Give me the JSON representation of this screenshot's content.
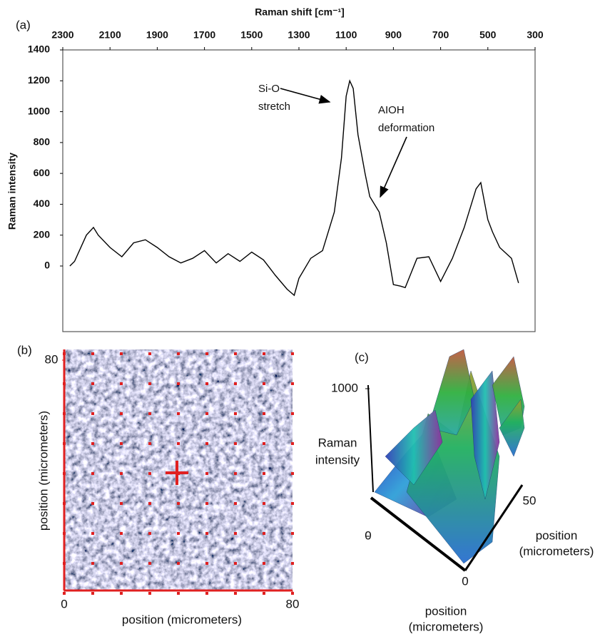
{
  "chart_data": [
    {
      "type": "line",
      "panel": "(a)",
      "title": "Raman shift [cm⁻¹]",
      "ylabel": "Raman intensity",
      "xlim": [
        2300,
        300
      ],
      "xticks": [
        2300,
        2100,
        1900,
        1700,
        1500,
        1300,
        1100,
        900,
        700,
        500,
        300
      ],
      "ylim": [
        -425,
        1400
      ],
      "yticks": [
        0,
        200,
        400,
        600,
        800,
        1000,
        1200,
        1400
      ],
      "color": "#000000",
      "x": [
        2270,
        2250,
        2200,
        2170,
        2150,
        2100,
        2050,
        2000,
        1950,
        1900,
        1850,
        1800,
        1750,
        1700,
        1650,
        1600,
        1550,
        1500,
        1450,
        1400,
        1350,
        1320,
        1300,
        1250,
        1200,
        1150,
        1120,
        1100,
        1085,
        1070,
        1050,
        1020,
        1000,
        960,
        930,
        900,
        870,
        850,
        800,
        750,
        700,
        650,
        600,
        550,
        530,
        500,
        480,
        450,
        400,
        370
      ],
      "values": [
        0,
        30,
        200,
        250,
        200,
        120,
        60,
        150,
        170,
        120,
        60,
        20,
        50,
        100,
        20,
        80,
        30,
        90,
        40,
        -60,
        -150,
        -190,
        -80,
        50,
        100,
        350,
        700,
        1100,
        1200,
        1150,
        850,
        600,
        450,
        350,
        150,
        -120,
        -130,
        -140,
        50,
        60,
        -100,
        50,
        250,
        500,
        540,
        300,
        220,
        120,
        50,
        -110
      ],
      "annotations": [
        {
          "lines": [
            "Si-O",
            "stretch"
          ]
        },
        {
          "lines": [
            "AIOH",
            "deformation"
          ]
        }
      ]
    },
    {
      "type": "image",
      "panel": "(b)",
      "xlabel": "position (micrometers)",
      "ylabel": "position (micrometers)",
      "xlim": [
        0,
        80
      ],
      "xticks": [
        0,
        80
      ],
      "ylim": [
        0,
        80
      ],
      "yticks": [
        80
      ]
    },
    {
      "type": "surface",
      "panel": "(c)",
      "zlabel": [
        "Raman",
        "intensity"
      ],
      "zlim": [
        0,
        1000
      ],
      "zticks": [
        0,
        1000
      ],
      "yticks": [
        50
      ],
      "ylabel": [
        "position",
        "(micrometers)"
      ],
      "xticks": [
        0
      ],
      "xlabel": [
        "position",
        "(micrometers)"
      ]
    }
  ]
}
